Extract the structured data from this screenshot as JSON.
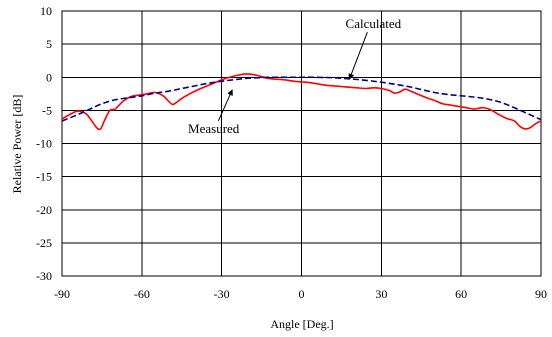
{
  "chart_data": {
    "type": "line",
    "title": "",
    "xlabel": "Angle [Deg.]",
    "ylabel": "Relative Power [dB]",
    "xlim": [
      -90,
      90
    ],
    "ylim": [
      -30,
      10
    ],
    "xticks": [
      -90,
      -60,
      -30,
      0,
      30,
      60,
      90
    ],
    "yticks": [
      10,
      5,
      0,
      -5,
      -10,
      -15,
      -20,
      -25,
      -30
    ],
    "grid": true,
    "legend": "none",
    "series": [
      {
        "name": "Measured",
        "color": "#ff0000",
        "style": "solid",
        "x": [
          -90,
          -87,
          -84,
          -81,
          -79,
          -77,
          -75.5,
          -74,
          -72,
          -70,
          -67,
          -64,
          -61,
          -58,
          -55,
          -52,
          -50,
          -48.5,
          -47,
          -45,
          -42,
          -39,
          -36,
          -33,
          -30,
          -27,
          -24,
          -21,
          -18,
          -15,
          -12,
          -9,
          -6,
          -3,
          0,
          3,
          6,
          9,
          12,
          15,
          18,
          21,
          24,
          27,
          30,
          33,
          35,
          37,
          39,
          41,
          44,
          47,
          50,
          53,
          56,
          59,
          62,
          65,
          68,
          71,
          74,
          77,
          80,
          82,
          84,
          86,
          88,
          90
        ],
        "y": [
          -6.3,
          -5.6,
          -5.1,
          -5.5,
          -6.5,
          -7.6,
          -7.8,
          -6.5,
          -5.0,
          -4.8,
          -3.6,
          -2.9,
          -2.7,
          -2.5,
          -2.3,
          -2.8,
          -3.6,
          -4.1,
          -3.8,
          -3.2,
          -2.5,
          -1.9,
          -1.4,
          -0.9,
          -0.4,
          0.0,
          0.3,
          0.5,
          0.4,
          0.1,
          -0.2,
          -0.3,
          -0.4,
          -0.6,
          -0.7,
          -0.8,
          -1.0,
          -1.2,
          -1.3,
          -1.4,
          -1.5,
          -1.6,
          -1.7,
          -1.6,
          -1.7,
          -2.0,
          -2.4,
          -2.2,
          -1.8,
          -2.1,
          -2.6,
          -3.1,
          -3.5,
          -4.0,
          -4.2,
          -4.4,
          -4.6,
          -4.8,
          -4.6,
          -4.9,
          -5.6,
          -6.2,
          -6.6,
          -7.4,
          -7.8,
          -7.6,
          -7.0,
          -6.6
        ]
      },
      {
        "name": "Calculated",
        "color": "#00008b",
        "style": "dashed",
        "x": [
          -90,
          -85,
          -80,
          -75,
          -70,
          -65,
          -60,
          -55,
          -50,
          -45,
          -40,
          -35,
          -30,
          -25,
          -20,
          -15,
          -10,
          -5,
          0,
          5,
          10,
          15,
          20,
          25,
          30,
          35,
          40,
          45,
          50,
          55,
          60,
          65,
          70,
          75,
          80,
          85,
          90
        ],
        "y": [
          -6.6,
          -5.8,
          -4.9,
          -4.0,
          -3.4,
          -3.1,
          -2.8,
          -2.4,
          -2.1,
          -1.7,
          -1.3,
          -0.9,
          -0.6,
          -0.35,
          -0.15,
          -0.05,
          0.0,
          0.0,
          0.0,
          0.0,
          -0.05,
          -0.15,
          -0.3,
          -0.5,
          -0.75,
          -1.05,
          -1.4,
          -1.85,
          -2.3,
          -2.6,
          -2.8,
          -3.0,
          -3.3,
          -3.8,
          -4.6,
          -5.5,
          -6.4
        ]
      }
    ],
    "annotations": [
      {
        "text": "Calculated",
        "text_x": 27,
        "text_y": 7.4,
        "arrow_to_x": 18,
        "arrow_to_y": -0.3
      },
      {
        "text": "Measured",
        "text_x": -33,
        "text_y": -8.4,
        "arrow_to_x": -26,
        "arrow_to_y": -1.9
      }
    ]
  }
}
